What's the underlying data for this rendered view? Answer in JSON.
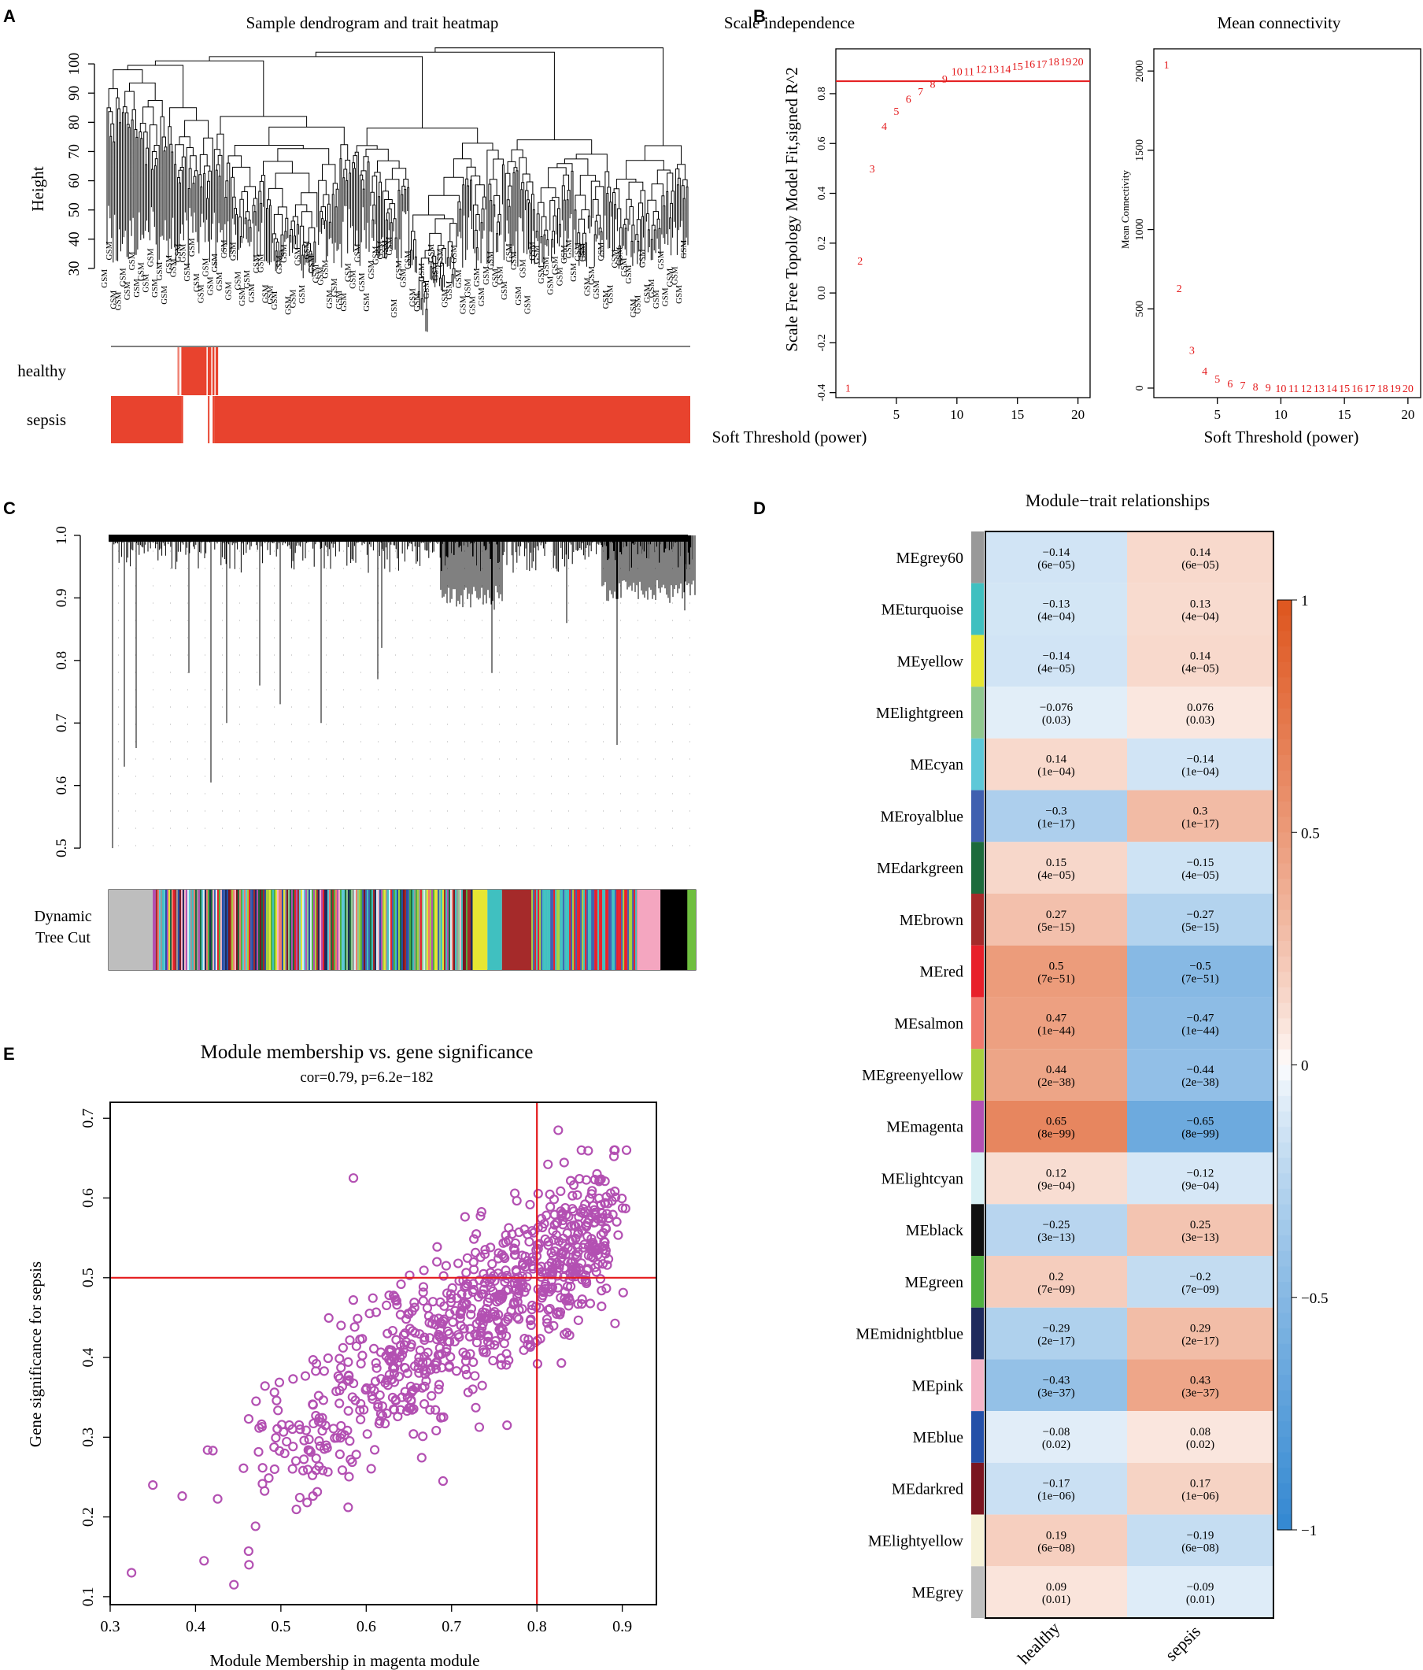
{
  "colors": {
    "red": "#e8432e",
    "magenta": "#b350b2",
    "line_red": "#e41a1c",
    "heat_pos": "#e0602c",
    "heat_neg": "#3f8fd4"
  },
  "panel_labels": [
    "A",
    "B",
    "C",
    "D",
    "E"
  ],
  "chart_data": [
    {
      "id": "A",
      "type": "dendrogram",
      "title": "Sample dendrogram and trait heatmap",
      "ylabel": "Height",
      "y_ticks": [
        30,
        40,
        50,
        60,
        70,
        80,
        90,
        100
      ],
      "ylim": [
        27,
        103
      ],
      "leaf_label_prefix": "GSM",
      "trait_rows": [
        "healthy",
        "sepsis"
      ],
      "healthy_samples_fraction": [
        0.115,
        0.185
      ],
      "sepsis_samples_fraction": [
        0.0,
        1.0
      ]
    },
    {
      "id": "B1",
      "type": "scatter",
      "title": "Scale independence",
      "xlabel": "Soft Threshold (power)",
      "ylabel": "Scale Free Topology Model Fit,signed R^2",
      "x_ticks": [
        5,
        10,
        15,
        20
      ],
      "y_ticks": [
        "-0.4",
        "-0.2",
        "0.0",
        "0.2",
        "0.4",
        "0.6",
        "0.8"
      ],
      "xlim": [
        0,
        21
      ],
      "ylim": [
        -0.42,
        0.98
      ],
      "threshold": 0.85,
      "x": [
        1,
        2,
        3,
        4,
        5,
        6,
        7,
        8,
        9,
        10,
        11,
        12,
        13,
        14,
        15,
        16,
        17,
        18,
        19,
        20
      ],
      "y": [
        -0.38,
        0.13,
        0.5,
        0.67,
        0.73,
        0.78,
        0.81,
        0.84,
        0.86,
        0.89,
        0.89,
        0.9,
        0.9,
        0.9,
        0.91,
        0.92,
        0.92,
        0.93,
        0.93,
        0.93
      ]
    },
    {
      "id": "B2",
      "type": "scatter",
      "title": "Mean connectivity",
      "xlabel": "Soft Threshold (power)",
      "ylabel": "Mean Connectivity",
      "x_ticks": [
        5,
        10,
        15,
        20
      ],
      "y_ticks": [
        0,
        500,
        1000,
        1500,
        2000
      ],
      "xlim": [
        0,
        21
      ],
      "ylim": [
        -60,
        2140
      ],
      "x": [
        1,
        2,
        3,
        4,
        5,
        6,
        7,
        8,
        9,
        10,
        11,
        12,
        13,
        14,
        15,
        16,
        17,
        18,
        19,
        20
      ],
      "y": [
        2040,
        630,
        240,
        110,
        60,
        30,
        20,
        10,
        5,
        0,
        0,
        0,
        0,
        0,
        0,
        0,
        0,
        0,
        0,
        0
      ]
    },
    {
      "id": "C",
      "type": "dendrogram",
      "y_ticks": [
        "0.5",
        "0.6",
        "0.7",
        "0.8",
        "0.9",
        "1.0"
      ],
      "ylim": [
        0.48,
        1.01
      ],
      "color_bar_label": [
        "Dynamic",
        "Tree Cut"
      ],
      "module_blocks": [
        {
          "module": "grey",
          "color": "#bebebe",
          "from": 0.0,
          "to": 0.075
        },
        {
          "module": "mixed",
          "color": "#8fb3d9",
          "from": 0.075,
          "to": 0.62
        },
        {
          "module": "yellow",
          "color": "#e6e633",
          "from": 0.62,
          "to": 0.645
        },
        {
          "module": "brown",
          "color": "#a52a2a",
          "from": 0.67,
          "to": 0.72
        },
        {
          "module": "pink",
          "color": "#f4a6c0",
          "from": 0.9,
          "to": 0.94
        },
        {
          "module": "black",
          "color": "#000000",
          "from": 0.94,
          "to": 0.945
        },
        {
          "module": "green",
          "color": "#6fbf3f",
          "from": 0.945,
          "to": 1.0
        }
      ]
    },
    {
      "id": "D",
      "type": "heatmap",
      "title": "Module−trait relationships",
      "columns": [
        "healthy",
        "sepsis"
      ],
      "colorbar_ticks": [
        "1",
        "0.5",
        "0",
        "−0.5",
        "−1"
      ],
      "rows": [
        {
          "module": "MEgrey60",
          "color": "#999999",
          "healthy": "−0.14",
          "healthy_p": "(6e−05)",
          "sepsis": "0.14",
          "sepsis_p": "(6e−05)"
        },
        {
          "module": "MEturquoise",
          "color": "#40c0c0",
          "healthy": "−0.13",
          "healthy_p": "(4e−04)",
          "sepsis": "0.13",
          "sepsis_p": "(4e−04)"
        },
        {
          "module": "MEyellow",
          "color": "#e6e633",
          "healthy": "−0.14",
          "healthy_p": "(4e−05)",
          "sepsis": "0.14",
          "sepsis_p": "(4e−05)"
        },
        {
          "module": "MElightgreen",
          "color": "#90c890",
          "healthy": "−0.076",
          "healthy_p": "(0.03)",
          "sepsis": "0.076",
          "sepsis_p": "(0.03)"
        },
        {
          "module": "MEcyan",
          "color": "#5ec8d8",
          "healthy": "0.14",
          "healthy_p": "(1e−04)",
          "sepsis": "−0.14",
          "sepsis_p": "(1e−04)"
        },
        {
          "module": "MEroyalblue",
          "color": "#4060b0",
          "healthy": "−0.3",
          "healthy_p": "(1e−17)",
          "sepsis": "0.3",
          "sepsis_p": "(1e−17)"
        },
        {
          "module": "MEdarkgreen",
          "color": "#1d6b3c",
          "healthy": "0.15",
          "healthy_p": "(4e−05)",
          "sepsis": "−0.15",
          "sepsis_p": "(4e−05)"
        },
        {
          "module": "MEbrown",
          "color": "#a52a2a",
          "healthy": "0.27",
          "healthy_p": "(5e−15)",
          "sepsis": "−0.27",
          "sepsis_p": "(5e−15)"
        },
        {
          "module": "MEred",
          "color": "#e8202a",
          "healthy": "0.5",
          "healthy_p": "(7e−51)",
          "sepsis": "−0.5",
          "sepsis_p": "(7e−51)"
        },
        {
          "module": "MEsalmon",
          "color": "#f07a6e",
          "healthy": "0.47",
          "healthy_p": "(1e−44)",
          "sepsis": "−0.47",
          "sepsis_p": "(1e−44)"
        },
        {
          "module": "MEgreenyellow",
          "color": "#a8d040",
          "healthy": "0.44",
          "healthy_p": "(2e−38)",
          "sepsis": "−0.44",
          "sepsis_p": "(2e−38)"
        },
        {
          "module": "MEmagenta",
          "color": "#b350b2",
          "healthy": "0.65",
          "healthy_p": "(8e−99)",
          "sepsis": "−0.65",
          "sepsis_p": "(8e−99)"
        },
        {
          "module": "MElightcyan",
          "color": "#d8f0f4",
          "healthy": "0.12",
          "healthy_p": "(9e−04)",
          "sepsis": "−0.12",
          "sepsis_p": "(9e−04)"
        },
        {
          "module": "MEblack",
          "color": "#111111",
          "healthy": "−0.25",
          "healthy_p": "(3e−13)",
          "sepsis": "0.25",
          "sepsis_p": "(3e−13)"
        },
        {
          "module": "MEgreen",
          "color": "#50b040",
          "healthy": "0.2",
          "healthy_p": "(7e−09)",
          "sepsis": "−0.2",
          "sepsis_p": "(7e−09)"
        },
        {
          "module": "MEmidnightblue",
          "color": "#1e2a5c",
          "healthy": "−0.29",
          "healthy_p": "(2e−17)",
          "sepsis": "0.29",
          "sepsis_p": "(2e−17)"
        },
        {
          "module": "MEpink",
          "color": "#f4b6c8",
          "healthy": "−0.43",
          "healthy_p": "(3e−37)",
          "sepsis": "0.43",
          "sepsis_p": "(3e−37)"
        },
        {
          "module": "MEblue",
          "color": "#2450a8",
          "healthy": "−0.08",
          "healthy_p": "(0.02)",
          "sepsis": "0.08",
          "sepsis_p": "(0.02)"
        },
        {
          "module": "MEdarkred",
          "color": "#7a1520",
          "healthy": "−0.17",
          "healthy_p": "(1e−06)",
          "sepsis": "0.17",
          "sepsis_p": "(1e−06)"
        },
        {
          "module": "MElightyellow",
          "color": "#f6f2d8",
          "healthy": "0.19",
          "healthy_p": "(6e−08)",
          "sepsis": "−0.19",
          "sepsis_p": "(6e−08)"
        },
        {
          "module": "MEgrey",
          "color": "#bebebe",
          "healthy": "0.09",
          "healthy_p": "(0.01)",
          "sepsis": "−0.09",
          "sepsis_p": "(0.01)"
        }
      ]
    },
    {
      "id": "E",
      "type": "scatter",
      "title": "Module membership vs. gene significance",
      "subtitle": "cor=0.79, p=6.2e−182",
      "xlabel": "Module Membership in magenta module",
      "ylabel": "Gene significance for  sepsis",
      "x_ticks": [
        "0.3",
        "0.4",
        "0.5",
        "0.6",
        "0.7",
        "0.8",
        "0.9"
      ],
      "y_ticks": [
        "0.1",
        "0.2",
        "0.3",
        "0.4",
        "0.5",
        "0.6",
        "0.7"
      ],
      "xlim": [
        0.3,
        0.94
      ],
      "ylim": [
        0.09,
        0.72
      ],
      "vline": 0.8,
      "hline": 0.5,
      "n_points": 820,
      "trend": {
        "intercept": -0.061,
        "slope": 0.71,
        "noise_sd": 0.05
      },
      "x_range": [
        0.32,
        0.91
      ],
      "outliers": [
        [
          0.325,
          0.13
        ],
        [
          0.445,
          0.115
        ],
        [
          0.585,
          0.625
        ],
        [
          0.825,
          0.685
        ],
        [
          0.905,
          0.66
        ],
        [
          0.69,
          0.245
        ],
        [
          0.765,
          0.315
        ],
        [
          0.35,
          0.24
        ],
        [
          0.41,
          0.145
        ]
      ]
    }
  ]
}
